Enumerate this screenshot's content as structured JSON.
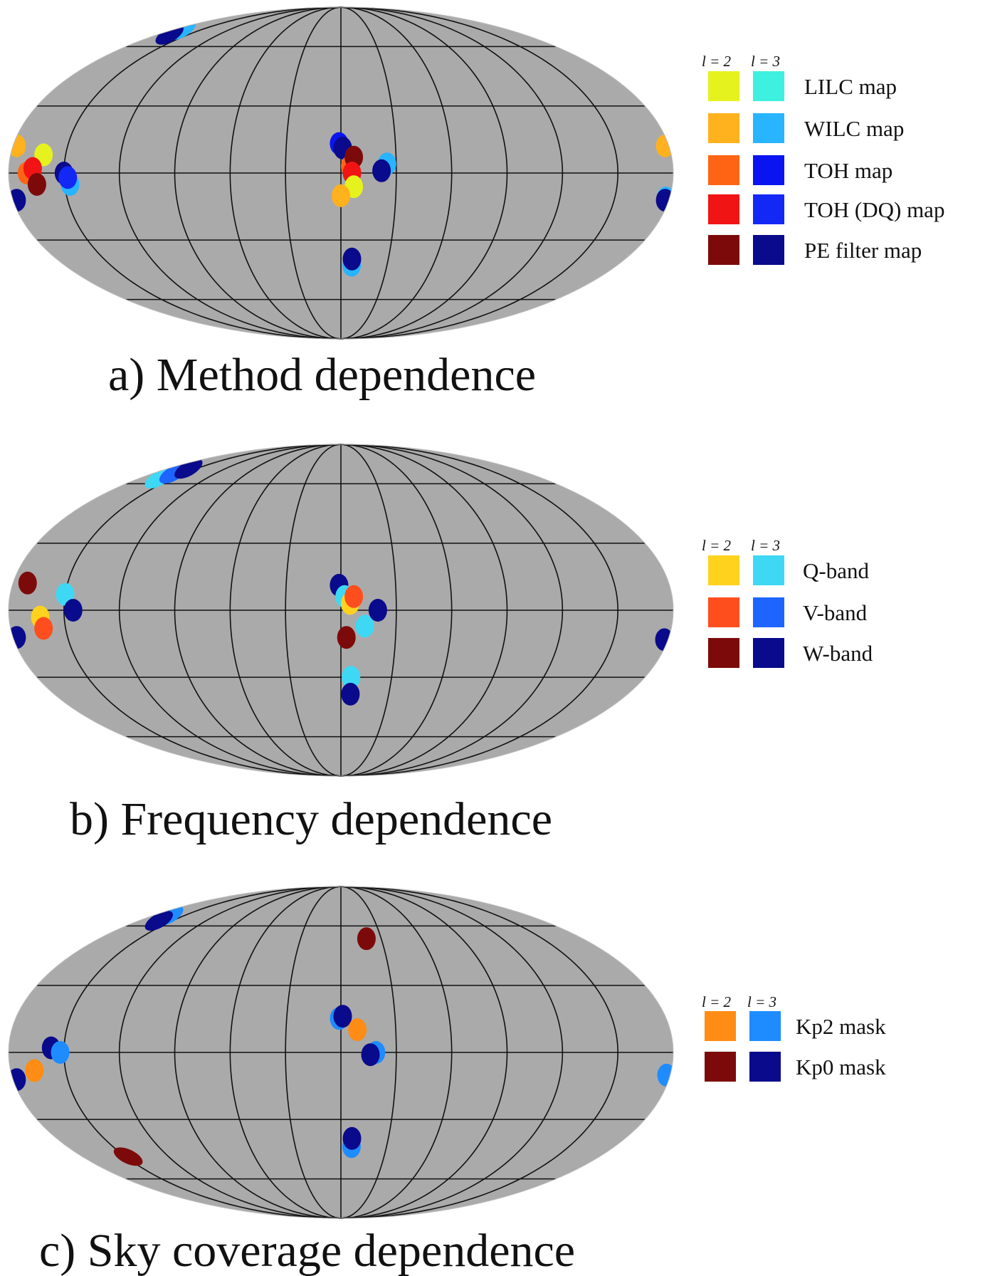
{
  "chart_data": [
    {
      "type": "scatter",
      "projection": "mollweide",
      "grid": true,
      "legend_placement": "right",
      "caption": "a) Method dependence",
      "legend_header": [
        "l = 2",
        "l = 3"
      ],
      "legend_entries": [
        {
          "label": "LILC map",
          "color_l2": "#e6f21e",
          "color_l3": "#3ef0e0"
        },
        {
          "label": "WILC map",
          "color_l2": "#ffb11e",
          "color_l3": "#28b4ff"
        },
        {
          "label": "TOH map",
          "color_l2": "#ff6414",
          "color_l3": "#0a14f0"
        },
        {
          "label": "TOH (DQ) map",
          "color_l2": "#f01414",
          "color_l3": "#1428f5"
        },
        {
          "label": "PE filter map",
          "color_l2": "#7d0a0a",
          "color_l3": "#0a0a8c"
        }
      ],
      "points": [
        {
          "lon": 170,
          "lat": 70,
          "color": "#28b4ff",
          "tilt": -30
        },
        {
          "lon": 168,
          "lat": 67,
          "color": "#0a0a8c",
          "tilt": -30
        },
        {
          "lon": 162,
          "lat": 8,
          "color": "#e6f21e"
        },
        {
          "lon": 170,
          "lat": 0,
          "color": "#ff6414"
        },
        {
          "lon": 167,
          "lat": 2,
          "color": "#f01414"
        },
        {
          "lon": 165,
          "lat": -5,
          "color": "#7d0a0a"
        },
        {
          "lon": 150,
          "lat": 0,
          "color": "#0a0a8c"
        },
        {
          "lon": 147,
          "lat": -5,
          "color": "#28b4ff"
        },
        {
          "lon": 148,
          "lat": -2,
          "color": "#1428f5"
        },
        {
          "lon": 178,
          "lat": 12,
          "color": "#ffb11e"
        },
        {
          "lon": 178,
          "lat": -12,
          "color": "#0a0a8c"
        },
        {
          "lon": -178,
          "lat": 12,
          "color": "#ffb11e"
        },
        {
          "lon": -178,
          "lat": -11,
          "color": "#28b4ff"
        },
        {
          "lon": -178,
          "lat": -12,
          "color": "#0a0a8c"
        },
        {
          "lon": 1,
          "lat": 13,
          "color": "#0a14f0"
        },
        {
          "lon": -1,
          "lat": 11,
          "color": "#0a0a8c"
        },
        {
          "lon": -5,
          "lat": 3,
          "color": "#ff6414"
        },
        {
          "lon": -7,
          "lat": 7,
          "color": "#7d0a0a"
        },
        {
          "lon": -6,
          "lat": 0,
          "color": "#f01414"
        },
        {
          "lon": -7,
          "lat": -6,
          "color": "#e6f21e"
        },
        {
          "lon": 0,
          "lat": -10,
          "color": "#ffb11e"
        },
        {
          "lon": -25,
          "lat": 4,
          "color": "#28b4ff"
        },
        {
          "lon": -22,
          "lat": 1,
          "color": "#0a0a8c"
        },
        {
          "lon": -7,
          "lat": -42,
          "color": "#28b4ff"
        },
        {
          "lon": -7,
          "lat": -39,
          "color": "#0a0a8c"
        }
      ]
    },
    {
      "type": "scatter",
      "projection": "mollweide",
      "grid": true,
      "legend_placement": "right",
      "caption": "b) Frequency dependence",
      "legend_header": [
        "l = 2",
        "l = 3"
      ],
      "legend_entries": [
        {
          "label": "Q-band",
          "color_l2": "#ffd21e",
          "color_l3": "#3ed8f5"
        },
        {
          "label": "V-band",
          "color_l2": "#ff4e1e",
          "color_l3": "#1e64ff"
        },
        {
          "label": "W-band",
          "color_l2": "#7d0a0a",
          "color_l3": "#0a0a8c"
        }
      ],
      "points": [
        {
          "lon": 162,
          "lat": 63,
          "color": "#3ed8f5",
          "tilt": -30
        },
        {
          "lon": 160,
          "lat": 66,
          "color": "#1e64ff",
          "tilt": -30
        },
        {
          "lon": 158,
          "lat": 69,
          "color": "#0a0a8c",
          "tilt": -30
        },
        {
          "lon": 172,
          "lat": 12,
          "color": "#7d0a0a"
        },
        {
          "lon": 150,
          "lat": 7,
          "color": "#3ed8f5"
        },
        {
          "lon": 145,
          "lat": 0,
          "color": "#0a0a8c"
        },
        {
          "lon": 163,
          "lat": -3,
          "color": "#ffd21e"
        },
        {
          "lon": 162,
          "lat": -8,
          "color": "#ff4e1e"
        },
        {
          "lon": 178,
          "lat": -12,
          "color": "#0a0a8c"
        },
        {
          "lon": -178,
          "lat": -13,
          "color": "#0a0a8c"
        },
        {
          "lon": 1,
          "lat": 11,
          "color": "#0a0a8c"
        },
        {
          "lon": -2,
          "lat": 6,
          "color": "#3ed8f5"
        },
        {
          "lon": -5,
          "lat": 3,
          "color": "#ffd21e"
        },
        {
          "lon": -7,
          "lat": 6,
          "color": "#ff4e1e"
        },
        {
          "lon": -3,
          "lat": -12,
          "color": "#7d0a0a"
        },
        {
          "lon": -13,
          "lat": -7,
          "color": "#3ed8f5"
        },
        {
          "lon": -20,
          "lat": 0,
          "color": "#0a0a8c"
        },
        {
          "lon": -6,
          "lat": -30,
          "color": "#3ed8f5"
        },
        {
          "lon": -6,
          "lat": -38,
          "color": "#0a0a8c"
        }
      ]
    },
    {
      "type": "scatter",
      "projection": "mollweide",
      "grid": true,
      "legend_placement": "right",
      "caption": "c) Sky coverage dependence",
      "legend_header": [
        "l = 2",
        "l = 3"
      ],
      "legend_entries": [
        {
          "label": "Kp2 mask",
          "color_l2": "#ff8c14",
          "color_l3": "#1e8cff"
        },
        {
          "label": "Kp0 mask",
          "color_l2": "#7d0a0a",
          "color_l3": "#0a0a8c"
        }
      ],
      "points": [
        {
          "lon": 164,
          "lat": 66,
          "color": "#1e8cff",
          "tilt": -30
        },
        {
          "lon": 162,
          "lat": 63,
          "color": "#0a0a8c",
          "tilt": -30
        },
        {
          "lon": 167,
          "lat": -8,
          "color": "#ff8c14"
        },
        {
          "lon": 157,
          "lat": 2,
          "color": "#0a0a8c"
        },
        {
          "lon": 152,
          "lat": 0,
          "color": "#1e8cff"
        },
        {
          "lon": 178,
          "lat": -12,
          "color": "#0a0a8c"
        },
        {
          "lon": -178,
          "lat": -10,
          "color": "#1e8cff"
        },
        {
          "lon": 148,
          "lat": -48,
          "color": "#7d0a0a",
          "tilt": 25
        },
        {
          "lon": 1,
          "lat": 15,
          "color": "#1e8cff"
        },
        {
          "lon": -1,
          "lat": 16,
          "color": "#0a0a8c"
        },
        {
          "lon": -9,
          "lat": 10,
          "color": "#ff8c14"
        },
        {
          "lon": -19,
          "lat": 0,
          "color": "#1e8cff"
        },
        {
          "lon": -16,
          "lat": -1,
          "color": "#0a0a8c"
        },
        {
          "lon": -19,
          "lat": 53,
          "color": "#7d0a0a"
        },
        {
          "lon": -7,
          "lat": -43,
          "color": "#1e8cff"
        },
        {
          "lon": -7,
          "lat": -39,
          "color": "#0a0a8c"
        }
      ]
    }
  ]
}
